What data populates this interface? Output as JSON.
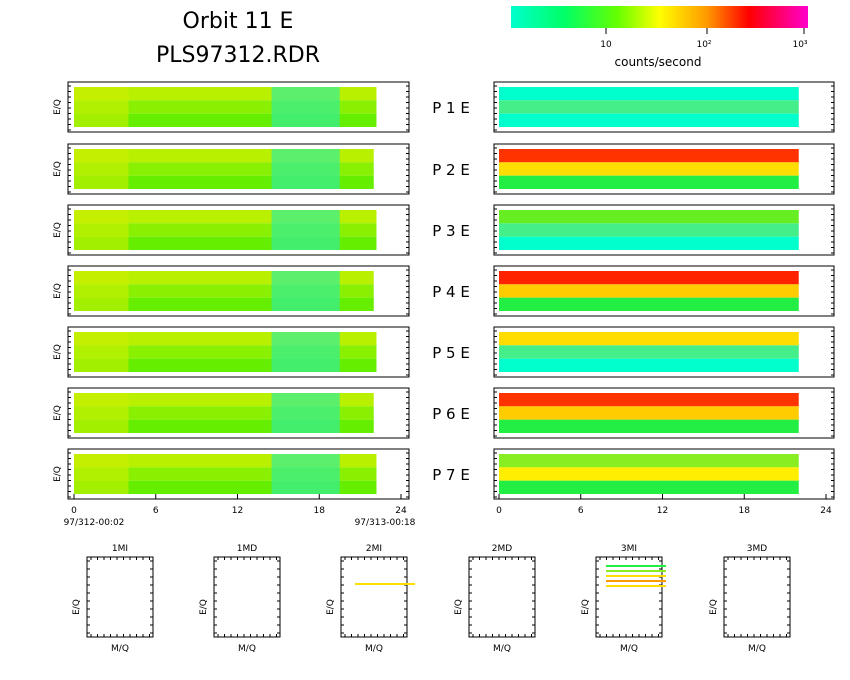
{
  "header": {
    "title_line1": "Orbit  11  E",
    "title_line2": "PLS97312.RDR"
  },
  "colorbar": {
    "stops": [
      "#00ffcc",
      "#00ff66",
      "#66ff00",
      "#ffff00",
      "#ff9900",
      "#ff0000",
      "#ff00cc"
    ],
    "tick_labels": [
      "10",
      "10²",
      "10³"
    ],
    "label": "counts/second"
  },
  "chart_data": {
    "type": "heatmap",
    "panel_ylabel": "E/Q",
    "xaxis": {
      "range": [
        0,
        24
      ],
      "ticks": [
        "0",
        "6",
        "12",
        "18",
        "24"
      ],
      "start_label": "97/312-00:02",
      "end_label": "97/313-00:18"
    },
    "panels": [
      {
        "id": "P 1",
        "label": "P   1   E",
        "left_end": 22.2,
        "right_end": 22.0
      },
      {
        "id": "P 2",
        "label": "P   2   E",
        "left_end": 22.0,
        "right_end": 22.0
      },
      {
        "id": "P 3",
        "label": "P   3   E",
        "left_end": 22.2,
        "right_end": 22.0
      },
      {
        "id": "P 4",
        "label": "P   4   E",
        "left_end": 22.0,
        "right_end": 22.0
      },
      {
        "id": "P 5",
        "label": "P   5   E",
        "left_end": 22.2,
        "right_end": 22.0
      },
      {
        "id": "P 6",
        "label": "P   6   E",
        "left_end": 22.0,
        "right_end": 22.0
      },
      {
        "id": "P 7",
        "label": "P   7   E",
        "left_end": 22.2,
        "right_end": 22.0
      }
    ],
    "mass_panels": [
      {
        "title": "1MI",
        "xlabel": "M/Q",
        "ylabel": "E/Q"
      },
      {
        "title": "1MD",
        "xlabel": "M/Q",
        "ylabel": "E/Q"
      },
      {
        "title": "2MI",
        "xlabel": "M/Q",
        "ylabel": "E/Q"
      },
      {
        "title": "2MD",
        "xlabel": "M/Q",
        "ylabel": "E/Q"
      },
      {
        "title": "3MI",
        "xlabel": "M/Q",
        "ylabel": "E/Q"
      },
      {
        "title": "3MD",
        "xlabel": "M/Q",
        "ylabel": "E/Q"
      }
    ]
  }
}
